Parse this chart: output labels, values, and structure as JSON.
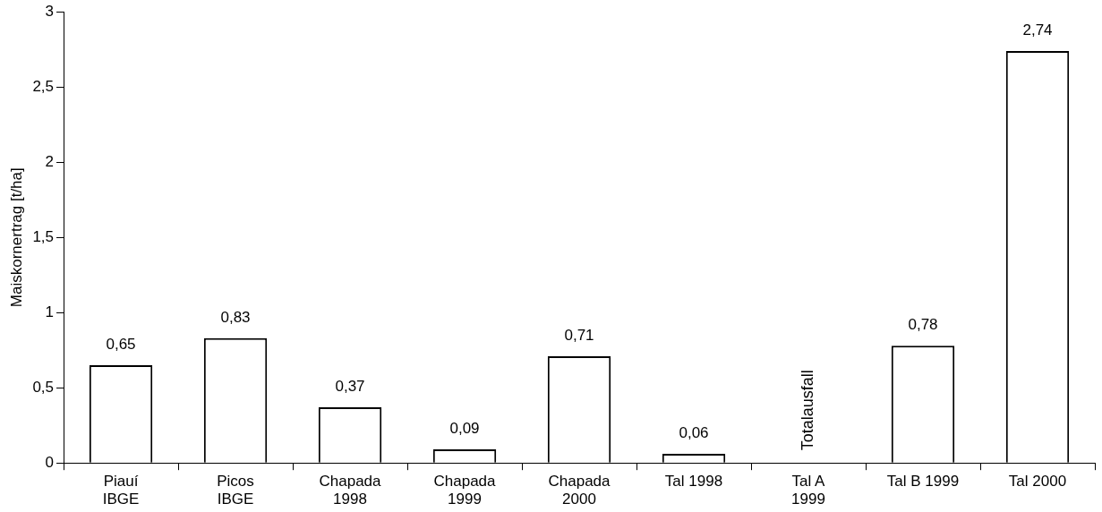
{
  "chart_data": {
    "type": "bar",
    "ylabel": "Maiskornertrag [t/ha]",
    "categories": [
      "Piauí\nIBGE",
      "Picos\nIBGE",
      "Chapada\n1998",
      "Chapada\n1999",
      "Chapada\n2000",
      "Tal 1998",
      "Tal A\n1999",
      "Tal B 1999",
      "Tal 2000"
    ],
    "values": [
      0.65,
      0.83,
      0.37,
      0.09,
      0.71,
      0.06,
      0,
      0.78,
      2.74
    ],
    "value_labels": [
      "0,65",
      "0,83",
      "0,37",
      "0,09",
      "0,71",
      "0,06",
      "Totalausfall",
      "0,78",
      "2,74"
    ],
    "color": "#ffffff",
    "ylim": [
      0,
      3
    ],
    "yticks": [
      0,
      {
        "value": 0.5,
        "label": "0,5"
      },
      1,
      {
        "value": 1.5,
        "label": "1,5"
      },
      2,
      {
        "value": 2.5,
        "label": "2,5"
      },
      3
    ],
    "grid": false,
    "legend": false
  }
}
